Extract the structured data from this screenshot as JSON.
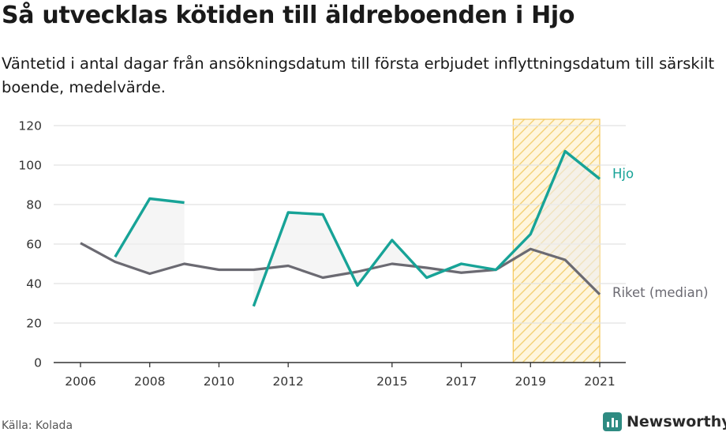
{
  "title": "Så utvecklas kötiden till äldreboenden i Hjo",
  "subtitle": "Väntetid i antal dagar från ansökningsdatum till första erbjudet inflyttningsdatum till särskilt boende, medelvärde.",
  "source": "Källa: Kolada",
  "brand": "Newsworthy",
  "colors": {
    "hjo": "#17a397",
    "riket": "#6b6a72",
    "highlight": "#f5c75a",
    "fill": "#eeeeee"
  },
  "chart_data": {
    "type": "line",
    "x_ticks": [
      2006,
      2008,
      2010,
      2012,
      2015,
      2017,
      2019,
      2021
    ],
    "y_ticks": [
      0,
      20,
      40,
      60,
      80,
      100,
      120
    ],
    "xlim": [
      2006,
      2021
    ],
    "ylim": [
      0,
      120
    ],
    "highlight_range": [
      2018.5,
      2021
    ],
    "series": [
      {
        "name": "Hjo",
        "x": [
          2007,
          2008,
          2009,
          2010,
          2011,
          2012,
          2013,
          2014,
          2015,
          2016,
          2017,
          2018,
          2019,
          2020,
          2021
        ],
        "values": [
          53.5,
          83,
          81,
          null,
          28.5,
          76,
          75,
          39,
          62,
          43,
          50,
          47,
          65,
          107,
          93
        ]
      },
      {
        "name": "Riket (median)",
        "x": [
          2006,
          2007,
          2008,
          2009,
          2010,
          2011,
          2012,
          2013,
          2014,
          2015,
          2016,
          2017,
          2018,
          2019,
          2020,
          2021
        ],
        "values": [
          60.5,
          51,
          45,
          50,
          47,
          47,
          49,
          43,
          46,
          50,
          48,
          45.5,
          47,
          57.5,
          52,
          34.5
        ]
      }
    ]
  }
}
